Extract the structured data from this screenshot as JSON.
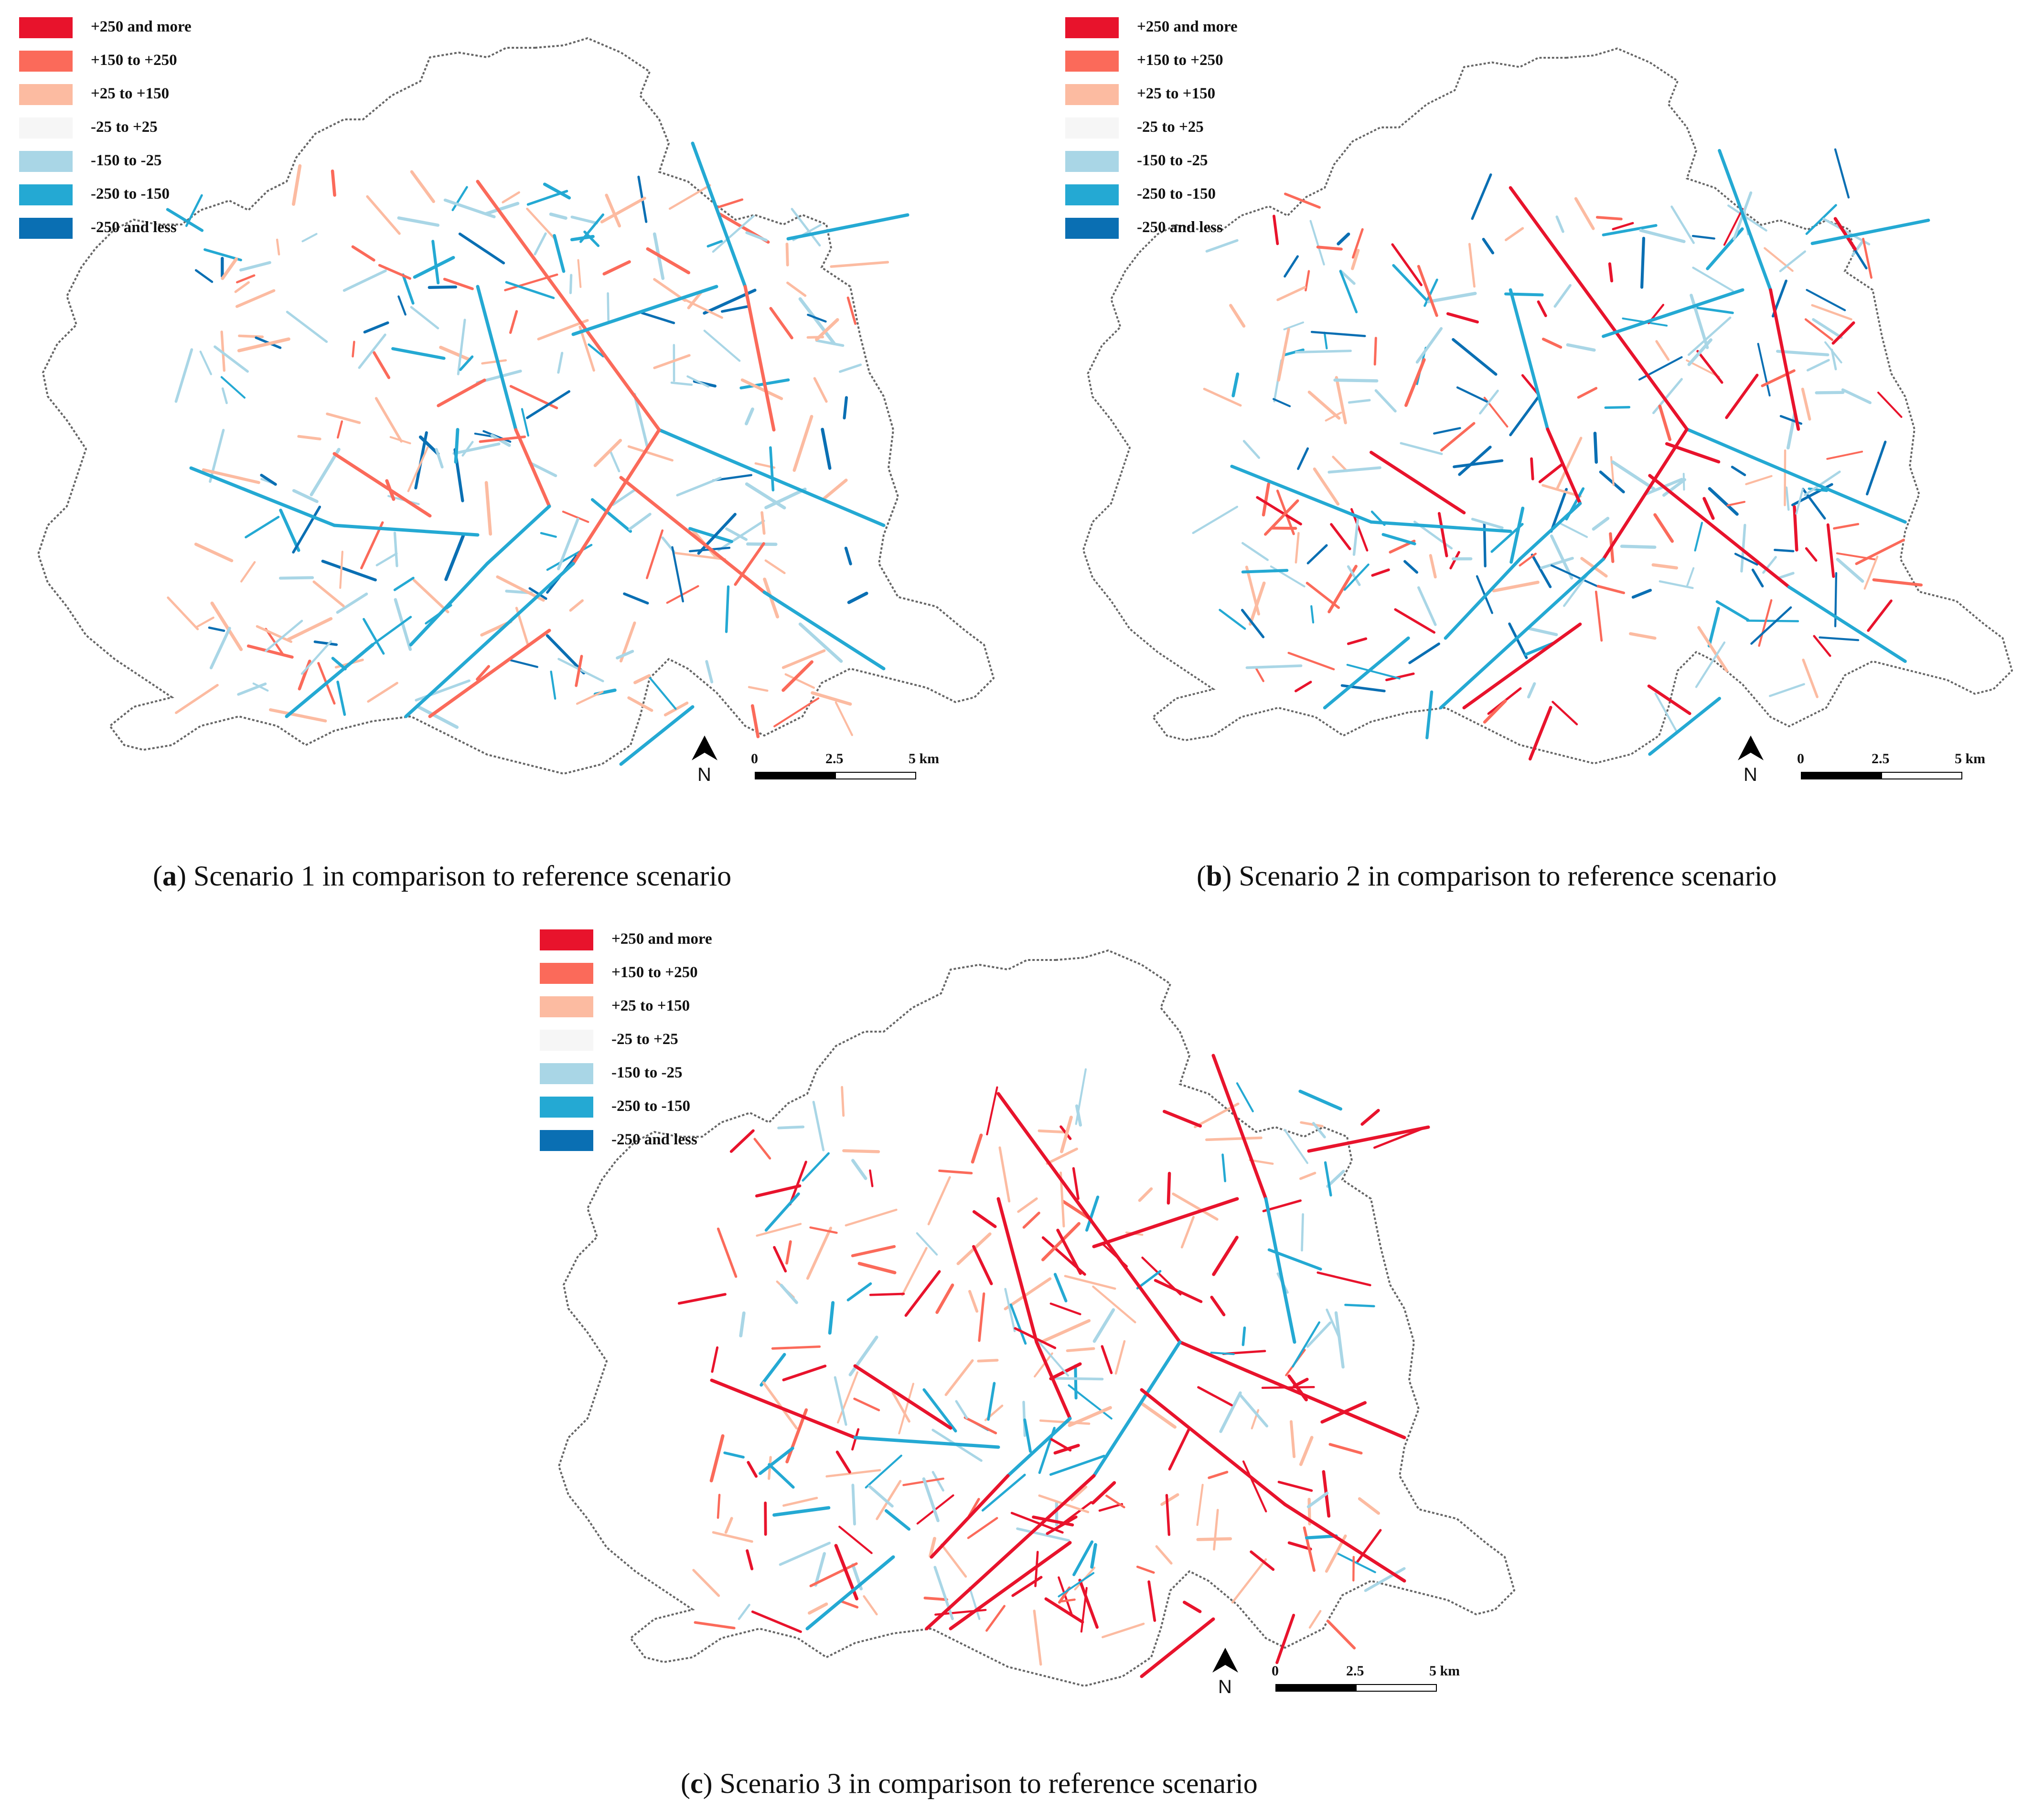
{
  "legend": {
    "items": [
      {
        "label": "+250 and more",
        "color": "#e8132c"
      },
      {
        "label": "+150 to +250",
        "color": "#fb6a5a"
      },
      {
        "label": "+25 to +150",
        "color": "#fcbba1"
      },
      {
        "label": "-25 to +25",
        "color": "#f6f6f6"
      },
      {
        "label": "-150 to -25",
        "color": "#a9d6e6"
      },
      {
        "label": "-250 to -150",
        "color": "#24a9d3"
      },
      {
        "label": "-250 and less",
        "color": "#0a6fb3"
      }
    ]
  },
  "scale_bar": {
    "ticks": [
      "0",
      "2.5",
      "5 km"
    ]
  },
  "north_arrow": {
    "label": "N"
  },
  "panels": [
    {
      "letter": "a",
      "caption": " Scenario 1 in comparison to reference scenario"
    },
    {
      "letter": "b",
      "caption": " Scenario 2 in comparison to reference scenario"
    },
    {
      "letter": "c",
      "caption": " Scenario 3 in comparison to reference scenario"
    }
  ]
}
